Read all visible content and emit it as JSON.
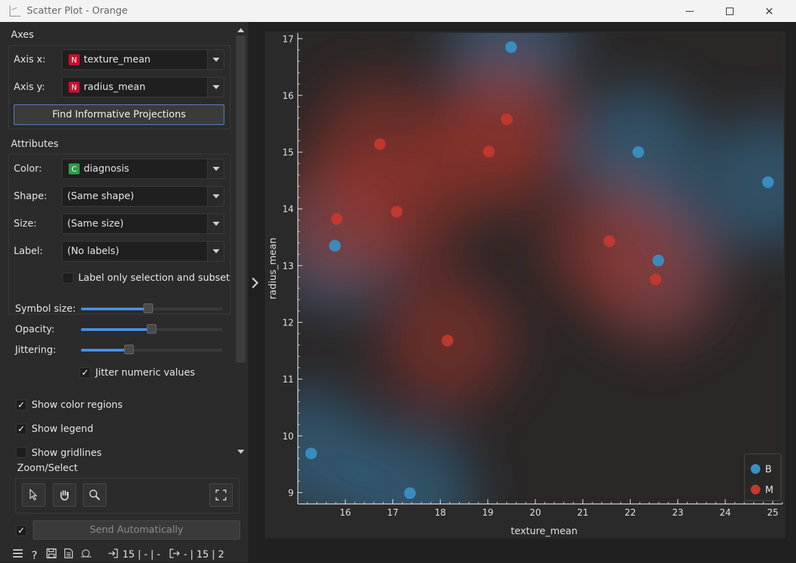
{
  "window": {
    "title": "Scatter Plot - Orange"
  },
  "axes_section": {
    "title": "Axes",
    "axis_x": {
      "label": "Axis x:",
      "badge": "N",
      "value": "texture_mean"
    },
    "axis_y": {
      "label": "Axis y:",
      "badge": "N",
      "value": "radius_mean"
    },
    "find_button": "Find Informative Projections"
  },
  "attributes_section": {
    "title": "Attributes",
    "color": {
      "label": "Color:",
      "badge": "C",
      "value": "diagnosis"
    },
    "shape": {
      "label": "Shape:",
      "value": "(Same shape)"
    },
    "size": {
      "label": "Size:",
      "value": "(Same size)"
    },
    "label": {
      "label": "Label:",
      "value": "(No labels)"
    },
    "label_only_selection": {
      "label": "Label only selection and subset",
      "checked": false
    }
  },
  "sliders": {
    "symbol_size": {
      "label": "Symbol size:",
      "fraction": 0.48
    },
    "opacity": {
      "label": "Opacity:",
      "fraction": 0.5
    },
    "jittering": {
      "label": "Jittering:",
      "fraction": 0.34
    }
  },
  "jitter_numeric": {
    "label": "Jitter numeric values",
    "checked": true
  },
  "show_color_regions": {
    "label": "Show color regions",
    "checked": true
  },
  "show_legend": {
    "label": "Show legend",
    "checked": true
  },
  "show_gridlines": {
    "label": "Show gridlines",
    "checked": false
  },
  "zoom_select": {
    "title": "Zoom/Select"
  },
  "send": {
    "checked": true,
    "label": "Send Automatically"
  },
  "status": {
    "input": "15 | - | -",
    "output": "- | 15 | 2"
  },
  "colors": {
    "B": "#3a8fc4",
    "M": "#c2392e"
  },
  "chart_data": {
    "type": "scatter",
    "xlabel": "texture_mean",
    "ylabel": "radius_mean",
    "xlim": [
      15.0,
      25.2
    ],
    "ylim": [
      8.8,
      17.1
    ],
    "xticks": [
      16,
      17,
      18,
      19,
      20,
      21,
      22,
      23,
      24,
      25
    ],
    "yticks": [
      9,
      10,
      11,
      12,
      13,
      14,
      15,
      16,
      17
    ],
    "legend": {
      "placement": "bottom-right",
      "entries": [
        "B",
        "M"
      ]
    },
    "grid": false,
    "series": [
      {
        "name": "B",
        "points": [
          {
            "x": 19.49,
            "y": 16.85
          },
          {
            "x": 22.17,
            "y": 15.0
          },
          {
            "x": 24.9,
            "y": 14.47
          },
          {
            "x": 15.78,
            "y": 13.35
          },
          {
            "x": 22.59,
            "y": 13.09
          },
          {
            "x": 15.28,
            "y": 9.69
          },
          {
            "x": 17.36,
            "y": 8.99
          }
        ]
      },
      {
        "name": "M",
        "points": [
          {
            "x": 19.4,
            "y": 15.58
          },
          {
            "x": 16.73,
            "y": 15.14
          },
          {
            "x": 19.02,
            "y": 15.01
          },
          {
            "x": 17.08,
            "y": 13.95
          },
          {
            "x": 15.82,
            "y": 13.82
          },
          {
            "x": 21.56,
            "y": 13.43
          },
          {
            "x": 22.53,
            "y": 12.76
          },
          {
            "x": 18.15,
            "y": 11.68
          }
        ]
      }
    ]
  }
}
